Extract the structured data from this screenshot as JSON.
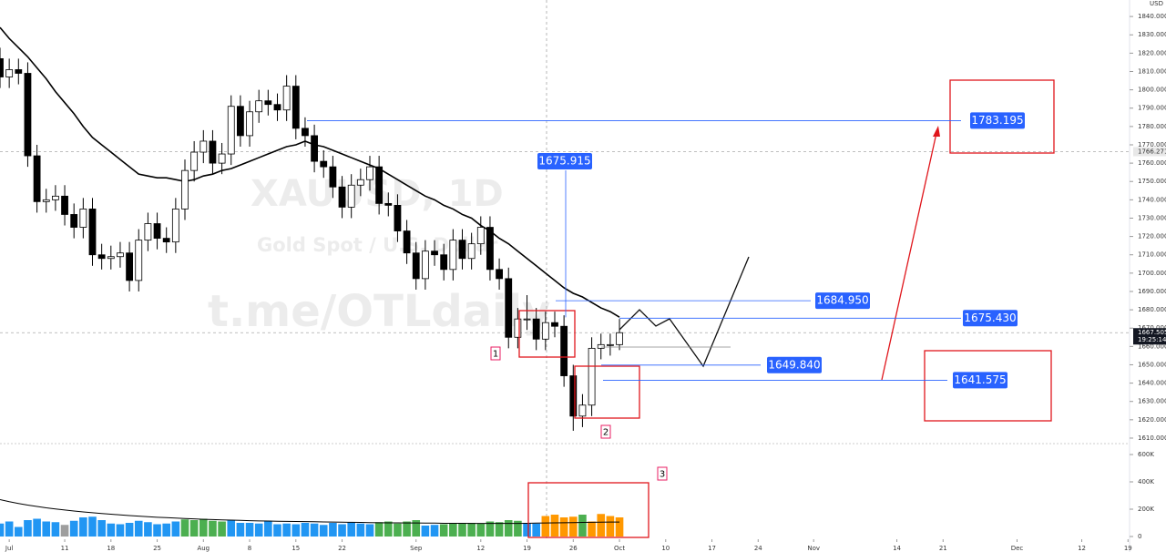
{
  "chart_data": {
    "type": "candlestick",
    "watermark": {
      "symbol": "XAUUSD, 1D",
      "description": "Gold Spot / U.S. Dollar",
      "channel": "t.me/OTLdaily"
    },
    "currency": "USD",
    "xlim": [
      0,
      122.17
    ],
    "xticks": [
      {
        "value": 1,
        "label": "Jul"
      },
      {
        "value": 7,
        "label": "11"
      },
      {
        "value": 12,
        "label": "18"
      },
      {
        "value": 17,
        "label": "25"
      },
      {
        "value": 22,
        "label": "Aug"
      },
      {
        "value": 27,
        "label": "8"
      },
      {
        "value": 32,
        "label": "15"
      },
      {
        "value": 37,
        "label": "22"
      },
      {
        "value": 45,
        "label": "Sep"
      },
      {
        "value": 52,
        "label": "12"
      },
      {
        "value": 57,
        "label": "19"
      },
      {
        "value": 62,
        "label": "26"
      },
      {
        "value": 67,
        "label": "Oct"
      },
      {
        "value": 72,
        "label": "10"
      },
      {
        "value": 77,
        "label": "17"
      },
      {
        "value": 82,
        "label": "24"
      },
      {
        "value": 88,
        "label": "Nov"
      },
      {
        "value": 97,
        "label": "14"
      },
      {
        "value": 102,
        "label": "21"
      },
      {
        "value": 110,
        "label": "Dec"
      },
      {
        "value": 117,
        "label": "12"
      },
      {
        "value": 122,
        "label": "19"
      }
    ],
    "ylim": [
      1607.5,
      1849
    ],
    "yticks": [
      {
        "value": 1840,
        "label": "1840.000"
      },
      {
        "value": 1830,
        "label": "1830.000"
      },
      {
        "value": 1820,
        "label": "1820.000"
      },
      {
        "value": 1810,
        "label": "1810.000"
      },
      {
        "value": 1800,
        "label": "1800.000"
      },
      {
        "value": 1790,
        "label": "1790.000"
      },
      {
        "value": 1780,
        "label": "1780.000"
      },
      {
        "value": 1770,
        "label": "1770.000"
      },
      {
        "value": 1760,
        "label": "1760.000"
      },
      {
        "value": 1750,
        "label": "1750.000"
      },
      {
        "value": 1740,
        "label": "1740.000"
      },
      {
        "value": 1730,
        "label": "1730.000"
      },
      {
        "value": 1720,
        "label": "1720.000"
      },
      {
        "value": 1710,
        "label": "1710.000"
      },
      {
        "value": 1700,
        "label": "1700.000"
      },
      {
        "value": 1690,
        "label": "1690.000"
      },
      {
        "value": 1680,
        "label": "1680.000"
      },
      {
        "value": 1670,
        "label": "1670.000"
      },
      {
        "value": 1660,
        "label": "1660.000"
      },
      {
        "value": 1650,
        "label": "1650.000"
      },
      {
        "value": 1640,
        "label": "1640.000"
      },
      {
        "value": 1630,
        "label": "1630.000"
      },
      {
        "value": 1620,
        "label": "1620.000"
      },
      {
        "value": 1610,
        "label": "1610.000"
      }
    ],
    "open": [
      1817,
      1807,
      1811,
      1809,
      1764,
      1739,
      1740,
      1742,
      1732,
      1725,
      1735,
      1710,
      1708,
      1709,
      1711,
      1696,
      1718,
      1727,
      1719,
      1717,
      1735,
      1756,
      1766,
      1772,
      1760,
      1765,
      1791,
      1775,
      1788,
      1794,
      1792,
      1789,
      1802,
      1779,
      1775,
      1761,
      1758,
      1747,
      1736,
      1748,
      1751,
      1758,
      1738,
      1737,
      1723,
      1711,
      1697,
      1712,
      1710,
      1702,
      1718,
      1708,
      1716,
      1725,
      1702,
      1697,
      1665,
      1675,
      1675,
      1664,
      1673,
      1671,
      1644,
      1622,
      1628,
      1659,
      1661,
      1661
    ],
    "high": [
      1823,
      1817,
      1817,
      1815,
      1770,
      1746,
      1748,
      1748,
      1738,
      1741,
      1741,
      1716,
      1715,
      1717,
      1717,
      1724,
      1733,
      1733,
      1725,
      1741,
      1762,
      1772,
      1778,
      1778,
      1771,
      1797,
      1797,
      1794,
      1800,
      1800,
      1798,
      1808,
      1808,
      1785,
      1781,
      1767,
      1764,
      1753,
      1754,
      1757,
      1764,
      1764,
      1744,
      1743,
      1729,
      1717,
      1718,
      1718,
      1716,
      1724,
      1724,
      1722,
      1731,
      1731,
      1708,
      1703,
      1681,
      1688,
      1681,
      1679,
      1679,
      1677,
      1650,
      1634,
      1665,
      1667,
      1667,
      1675
    ],
    "low": [
      1801,
      1801,
      1803,
      1758,
      1733,
      1733,
      1734,
      1726,
      1719,
      1719,
      1704,
      1702,
      1702,
      1703,
      1690,
      1690,
      1712,
      1713,
      1711,
      1711,
      1729,
      1750,
      1760,
      1754,
      1754,
      1759,
      1769,
      1769,
      1782,
      1786,
      1783,
      1783,
      1773,
      1769,
      1755,
      1752,
      1741,
      1730,
      1730,
      1742,
      1745,
      1732,
      1731,
      1717,
      1705,
      1691,
      1691,
      1704,
      1696,
      1696,
      1702,
      1702,
      1710,
      1696,
      1691,
      1659,
      1659,
      1669,
      1658,
      1658,
      1665,
      1638,
      1614,
      1616,
      1622,
      1653,
      1655,
      1658
    ],
    "close": [
      1807,
      1811,
      1809,
      1764,
      1739,
      1740,
      1742,
      1732,
      1725,
      1735,
      1710,
      1708,
      1709,
      1711,
      1696,
      1718,
      1727,
      1719,
      1717,
      1735,
      1756,
      1766,
      1772,
      1760,
      1765,
      1791,
      1775,
      1788,
      1794,
      1792,
      1789,
      1802,
      1779,
      1775,
      1761,
      1758,
      1747,
      1736,
      1748,
      1751,
      1758,
      1738,
      1737,
      1723,
      1711,
      1697,
      1712,
      1710,
      1702,
      1718,
      1708,
      1716,
      1725,
      1702,
      1697,
      1665,
      1675,
      1675,
      1664,
      1673,
      1671,
      1644,
      1622,
      1628,
      1659,
      1661,
      1661,
      1667.505
    ],
    "up_color": "#ffffff",
    "down_color": "#000000",
    "ma": [
      1834,
      1828,
      1823,
      1818,
      1812,
      1806,
      1799,
      1793,
      1787,
      1780,
      1774,
      1770,
      1766,
      1762,
      1758,
      1754,
      1753,
      1752,
      1752,
      1751,
      1750,
      1751,
      1753,
      1754,
      1756,
      1757,
      1759,
      1761,
      1763,
      1765,
      1767,
      1769,
      1770,
      1772,
      1770,
      1769,
      1767,
      1765,
      1763,
      1761,
      1759,
      1757,
      1754,
      1751,
      1748,
      1745,
      1742,
      1740,
      1737,
      1735,
      1732,
      1730,
      1726,
      1723,
      1719,
      1716,
      1712,
      1708,
      1704,
      1700,
      1696,
      1692,
      1689,
      1687,
      1684,
      1681,
      1679,
      1676
    ],
    "ma_color": "#000000",
    "last_price": 1667.505,
    "countdown": "19:25:14",
    "marker_price": 1766.271,
    "levels": [
      1783.195,
      1675.915,
      {
        "value": 1684.95,
        "label": "1684.950"
      },
      {
        "value": 1675.43,
        "label": "1675.430"
      },
      {
        "value": 1649.84,
        "label": "1649.840"
      },
      1641.575
    ],
    "level_color": "#2962ff",
    "box_labels": [
      "1",
      "2",
      "3"
    ],
    "volume": {
      "ylim": [
        -20000,
        673333
      ],
      "yticks": [
        {
          "value": 600000,
          "label": "600K"
        },
        {
          "value": 400000,
          "label": "400K"
        },
        {
          "value": 200000,
          "label": "200K"
        },
        0
      ],
      "values": [
        95000,
        110000,
        70000,
        120000,
        130000,
        110000,
        105000,
        85000,
        115000,
        140000,
        145000,
        120000,
        95000,
        90000,
        100000,
        115000,
        105000,
        90000,
        95000,
        110000,
        125000,
        120000,
        130000,
        115000,
        110000,
        120000,
        100000,
        100000,
        95000,
        115000,
        90000,
        95000,
        90000,
        100000,
        95000,
        85000,
        100000,
        90000,
        105000,
        95000,
        90000,
        105000,
        110000,
        95000,
        110000,
        120000,
        80000,
        85000,
        90000,
        95000,
        100000,
        100000,
        95000,
        110000,
        105000,
        120000,
        115000,
        100000,
        95000,
        150000,
        160000,
        140000,
        145000,
        160000,
        110000,
        165000,
        150000,
        140000
      ],
      "colors": [
        "#2196f3",
        "#2196f3",
        "#2196f3",
        "#2196f3",
        "#2196f3",
        "#2196f3",
        "#2196f3",
        "#9e9e9e",
        "#2196f3",
        "#2196f3",
        "#2196f3",
        "#2196f3",
        "#2196f3",
        "#2196f3",
        "#2196f3",
        "#2196f3",
        "#2196f3",
        "#2196f3",
        "#2196f3",
        "#2196f3",
        "#4caf50",
        "#4caf50",
        "#4caf50",
        "#4caf50",
        "#4caf50",
        "#2196f3",
        "#2196f3",
        "#2196f3",
        "#2196f3",
        "#2196f3",
        "#2196f3",
        "#2196f3",
        "#2196f3",
        "#2196f3",
        "#2196f3",
        "#2196f3",
        "#2196f3",
        "#2196f3",
        "#2196f3",
        "#2196f3",
        "#2196f3",
        "#4caf50",
        "#4caf50",
        "#4caf50",
        "#4caf50",
        "#4caf50",
        "#2196f3",
        "#2196f3",
        "#4caf50",
        "#4caf50",
        "#4caf50",
        "#4caf50",
        "#4caf50",
        "#4caf50",
        "#4caf50",
        "#4caf50",
        "#4caf50",
        "#2196f3",
        "#2196f3",
        "#ff9800",
        "#ff9800",
        "#ff9800",
        "#ff9800",
        "#4caf50",
        "#ff9800",
        "#ff9800",
        "#ff9800",
        "#ff9800"
      ],
      "ma": [
        270000,
        255000,
        242000,
        230000,
        220000,
        210000,
        202000,
        194000,
        187000,
        180000,
        174000,
        168000,
        163000,
        158000,
        153000,
        149000,
        145000,
        141000,
        138000,
        135000,
        132000,
        129000,
        126000,
        124000,
        122000,
        120000,
        118000,
        116000,
        114000,
        113000,
        112000,
        111000,
        110000,
        109000,
        108000,
        107000,
        106000,
        105000,
        104000,
        103000,
        102000,
        101000,
        100000,
        100000,
        99000,
        99000,
        98000,
        98000,
        97000,
        97000,
        97000,
        96000,
        96000,
        96000,
        96000,
        96000,
        96000,
        97000,
        98000,
        99000,
        100000,
        101000,
        102000,
        103000,
        104000,
        105000,
        106000,
        106000
      ]
    }
  }
}
